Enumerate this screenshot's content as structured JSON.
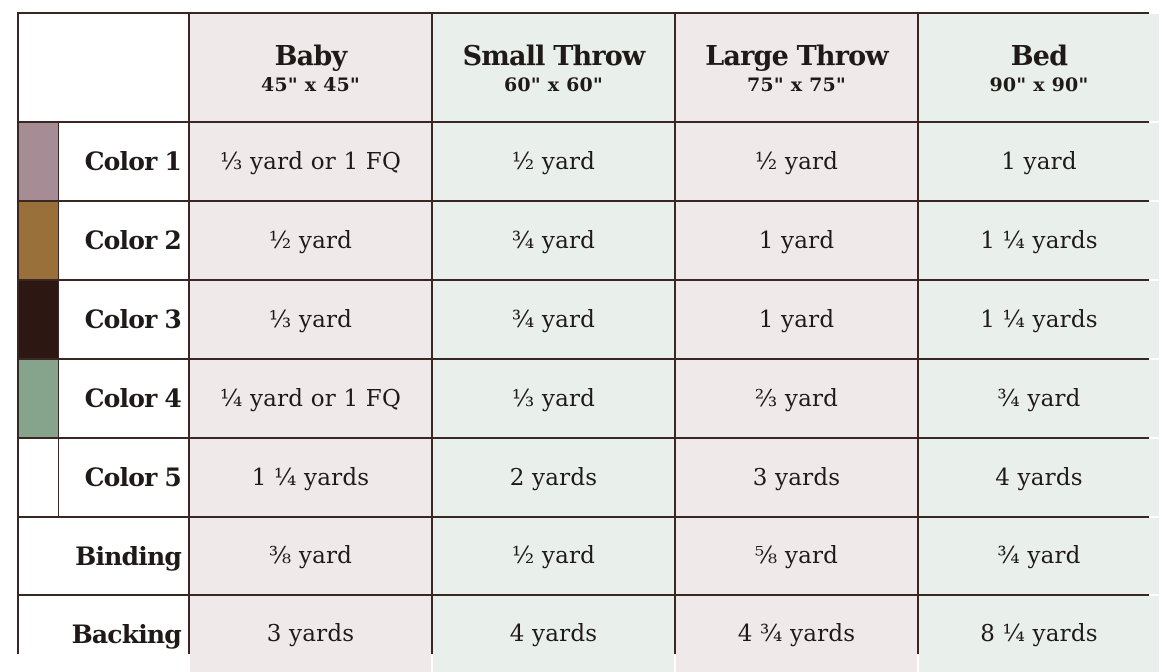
{
  "table": {
    "columns": [
      {
        "name": "Baby",
        "size": "45\" x 45\""
      },
      {
        "name": "Small Throw",
        "size": "60\" x 60\""
      },
      {
        "name": "Large Throw",
        "size": "75\" x 75\""
      },
      {
        "name": "Bed",
        "size": "90\" x 90\""
      }
    ],
    "rows": [
      {
        "label": "Color 1",
        "swatch": "#a68c94",
        "values": [
          "⅓ yard or 1 FQ",
          "½ yard",
          "½ yard",
          "1 yard"
        ]
      },
      {
        "label": "Color 2",
        "swatch": "#99703a",
        "values": [
          "½ yard",
          "¾ yard",
          "1 yard",
          "1 ¼ yards"
        ]
      },
      {
        "label": "Color 3",
        "swatch": "#2c1712",
        "values": [
          "⅓ yard",
          "¾ yard",
          "1 yard",
          "1 ¼ yards"
        ]
      },
      {
        "label": "Color 4",
        "swatch": "#86a38c",
        "values": [
          "¼ yard or 1 FQ",
          "⅓ yard",
          "⅔ yard",
          "¾ yard"
        ]
      },
      {
        "label": "Color 5",
        "swatch": "#ffffff",
        "values": [
          "1 ¼ yards",
          "2 yards",
          "3 yards",
          "4 yards"
        ]
      },
      {
        "label": "Binding",
        "swatch": null,
        "values": [
          "⅜ yard",
          "½ yard",
          "⅝ yard",
          "¾ yard"
        ]
      },
      {
        "label": "Backing",
        "swatch": null,
        "values": [
          "3 yards",
          "4 yards",
          "4 ¾ yards",
          "8 ¼ yards"
        ]
      }
    ]
  },
  "colors": {
    "border": "#3a2622",
    "pink_cell": "#efe9ea",
    "green_cell": "#e9efeb"
  }
}
